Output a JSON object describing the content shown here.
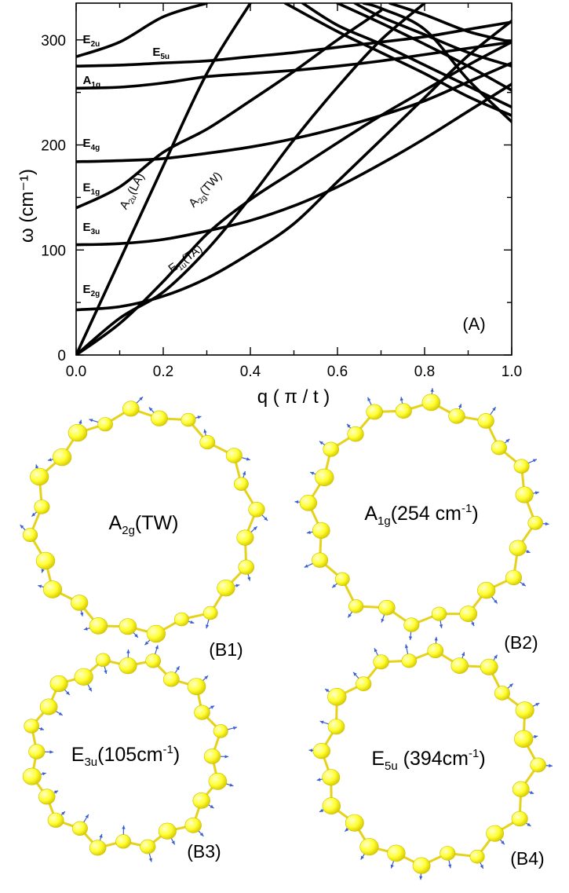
{
  "chart_data": {
    "type": "line",
    "xlabel": "q ( π / t )",
    "ylabel": "ω (cm⁻¹)",
    "xlim": [
      0.0,
      1.0
    ],
    "ylim": [
      0,
      335
    ],
    "x_ticks": [
      "0.0",
      "0.2",
      "0.4",
      "0.6",
      "0.8",
      "1.0"
    ],
    "y_ticks": [
      "0",
      "100",
      "200",
      "300"
    ],
    "panel_label": "(A)",
    "mode_labels": [
      {
        "base": "E",
        "sub": "2u",
        "q": 0.01,
        "w": 297
      },
      {
        "base": "E",
        "sub": "5u",
        "q": 0.17,
        "w": 285
      },
      {
        "base": "A",
        "sub": "1g",
        "q": 0.01,
        "w": 258
      },
      {
        "base": "E",
        "sub": "4g",
        "q": 0.01,
        "w": 198
      },
      {
        "base": "E",
        "sub": "1g",
        "q": 0.01,
        "w": 156
      },
      {
        "base": "E",
        "sub": "3u",
        "q": 0.01,
        "w": 118
      },
      {
        "base": "E",
        "sub": "2g",
        "q": 0.01,
        "w": 59
      }
    ],
    "curve_labels": [
      {
        "base": "A",
        "sub": "2u",
        "rest": "(LA)",
        "q": 0.115,
        "w": 138,
        "angle": -62
      },
      {
        "base": "A",
        "sub": "2g",
        "rest": "(TW)",
        "q": 0.27,
        "w": 140,
        "angle": -48
      },
      {
        "base": "E",
        "sub": "1u",
        "rest": "(TA)",
        "q": 0.22,
        "w": 78,
        "angle": -36
      }
    ],
    "series": [
      {
        "x": [
          0,
          0.1,
          0.2,
          0.3,
          0.4,
          0.5,
          0.6,
          0.7,
          0.8,
          0.9,
          1.0
        ],
        "values": [
          0,
          90,
          180,
          268,
          335,
          null,
          null,
          null,
          null,
          null,
          null
        ]
      },
      {
        "x": [
          0,
          0.1,
          0.2,
          0.3,
          0.4,
          0.5,
          0.6,
          0.7,
          0.8,
          0.9,
          1.0
        ],
        "values": [
          0,
          35,
          60,
          100,
          150,
          205,
          255,
          300,
          335,
          null,
          null
        ]
      },
      {
        "x": [
          0,
          0.1,
          0.2,
          0.3,
          0.4,
          0.5,
          0.6,
          0.7,
          0.8,
          0.9,
          1.0
        ],
        "values": [
          0,
          30,
          70,
          115,
          148,
          175,
          202,
          228,
          252,
          276,
          298
        ]
      },
      {
        "x": [
          0,
          0.1,
          0.2,
          0.3,
          0.4,
          0.5,
          0.6,
          0.7,
          0.8,
          0.9,
          1.0
        ],
        "values": [
          43,
          46,
          56,
          73,
          97,
          125,
          165,
          205,
          245,
          285,
          318
        ]
      },
      {
        "x": [
          0,
          0.1,
          0.2,
          0.3,
          0.4,
          0.5,
          0.6,
          0.7,
          0.8,
          0.9,
          1.0
        ],
        "values": [
          105,
          106,
          110,
          118,
          128,
          142,
          160,
          182,
          206,
          232,
          258
        ]
      },
      {
        "x": [
          0,
          0.1,
          0.2,
          0.3,
          0.4,
          0.5,
          0.6,
          0.7,
          0.8,
          0.9,
          1.0
        ],
        "values": [
          140,
          160,
          193,
          215,
          242,
          270,
          300,
          328,
          null,
          null,
          null
        ]
      },
      {
        "x": [
          0,
          0.1,
          0.2,
          0.3,
          0.4,
          0.5,
          0.6,
          0.7,
          0.8,
          0.9,
          1.0
        ],
        "values": [
          184,
          185,
          187,
          192,
          198,
          206,
          216,
          228,
          242,
          260,
          278
        ]
      },
      {
        "x": [
          0,
          0.1,
          0.2,
          0.3,
          0.4,
          0.5,
          0.6,
          0.7,
          0.8,
          0.9,
          1.0
        ],
        "values": [
          254,
          255,
          259,
          265,
          268,
          271,
          275,
          280,
          286,
          292,
          298
        ]
      },
      {
        "x": [
          0,
          0.1,
          0.2,
          0.3,
          0.4,
          0.5,
          0.6,
          0.7,
          0.8,
          0.9,
          1.0
        ],
        "values": [
          275,
          276,
          278,
          280,
          284,
          288,
          293,
          298,
          303,
          310,
          317
        ]
      },
      {
        "x": [
          0,
          0.1,
          0.2,
          0.3,
          0.4,
          0.5,
          0.6,
          0.7,
          0.8,
          0.9,
          1.0
        ],
        "values": [
          284,
          298,
          322,
          335,
          null,
          null,
          null,
          null,
          null,
          null,
          null
        ]
      },
      {
        "x": [
          0.48,
          0.6,
          0.7,
          0.8,
          0.9,
          1.0
        ],
        "values": [
          335,
          308,
          288,
          268,
          246,
          228
        ]
      },
      {
        "x": [
          0.52,
          0.6,
          0.7,
          0.8,
          0.9,
          1.0
        ],
        "values": [
          335,
          314,
          296,
          276,
          256,
          236
        ]
      },
      {
        "x": [
          0.6,
          0.7,
          0.8,
          0.9,
          1.0
        ],
        "values": [
          335,
          316,
          296,
          275,
          252
        ]
      },
      {
        "x": [
          0.64,
          0.7,
          0.8,
          0.9,
          1.0
        ],
        "values": [
          335,
          322,
          305,
          288,
          275
        ]
      },
      {
        "x": [
          0.72,
          0.8,
          0.9,
          1.0
        ],
        "values": [
          335,
          324,
          308,
          298
        ]
      },
      {
        "x": [
          0.66,
          0.7,
          0.8,
          0.9,
          1.0
        ],
        "values": [
          335,
          330,
          310,
          262,
          222
        ]
      }
    ]
  },
  "rings": [
    {
      "label_base": "A",
      "label_sub": "2g",
      "label_rest": "(TW)",
      "label_sup": "",
      "label_tail": "",
      "caption": "(B1)"
    },
    {
      "label_base": "A",
      "label_sub": "1g",
      "label_rest": "(254 cm",
      "label_sup": "-1",
      "label_tail": ")",
      "caption": "(B2)"
    },
    {
      "label_base": "E",
      "label_sub": "3u",
      "label_rest": "(105cm",
      "label_sup": "-1",
      "label_tail": ")",
      "caption": "(B3)"
    },
    {
      "label_base": "E",
      "label_sub": "5u",
      "label_rest": " (394cm",
      "label_sup": "-1",
      "label_tail": ")",
      "caption": "(B4)"
    }
  ],
  "colors": {
    "atom": "#ffff33",
    "bond": "#e6d21a",
    "arrow": "#3a5fd0",
    "curve": "#000000"
  }
}
